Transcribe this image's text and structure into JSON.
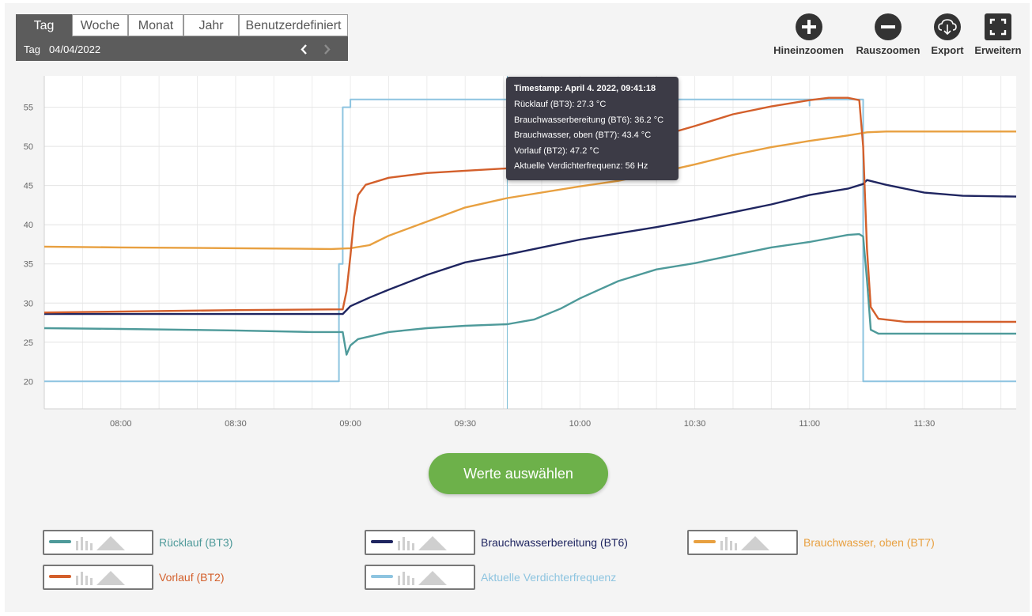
{
  "range": {
    "tabs": [
      "Tag",
      "Woche",
      "Monat",
      "Jahr",
      "Benutzerdefiniert"
    ],
    "active_tab": "Tag",
    "period_label": "Tag",
    "date": "04/04/2022",
    "prev_icon": "chevron-left-icon",
    "next_icon": "chevron-right-icon"
  },
  "toolbar": [
    {
      "label": "Hineinzoomen",
      "icon": "plus-circle-icon"
    },
    {
      "label": "Rauszoomen",
      "icon": "minus-circle-icon"
    },
    {
      "label": "Export",
      "icon": "cloud-download-icon"
    },
    {
      "label": "Erweitern",
      "icon": "expand-icon"
    }
  ],
  "tooltip": {
    "title": "Timestamp: April 4. 2022, 09:41:18",
    "lines": [
      "Rücklauf (BT3): 27.3 °C",
      "Brauchwasserbereitung (BT6): 36.2 °C",
      "Brauchwasser, oben (BT7): 43.4 °C",
      "Vorlauf (BT2): 47.2 °C",
      "Aktuelle Verdichterfrequenz: 56 Hz"
    ]
  },
  "select_button": "Werte auswählen",
  "chart_data": {
    "type": "line",
    "x_unit": "time (HH:MM, 04/04/2022)",
    "x_range": [
      "07:40",
      "11:54"
    ],
    "xticks": [
      "08:00",
      "08:30",
      "09:00",
      "09:30",
      "10:00",
      "10:30",
      "11:00",
      "11:30"
    ],
    "ylim": [
      16.5,
      59
    ],
    "yticks": [
      20,
      25,
      30,
      35,
      40,
      45,
      50,
      55
    ],
    "grid": true,
    "crosshair_x": "09:41",
    "series": [
      {
        "name": "Rücklauf (BT3)",
        "color": "#4e9a9a",
        "points": [
          [
            "07:40",
            26.8
          ],
          [
            "08:00",
            26.7
          ],
          [
            "08:30",
            26.5
          ],
          [
            "08:50",
            26.3
          ],
          [
            "08:58",
            26.3
          ],
          [
            "08:59",
            23.4
          ],
          [
            "09:00",
            24.6
          ],
          [
            "09:02",
            25.4
          ],
          [
            "09:10",
            26.3
          ],
          [
            "09:20",
            26.8
          ],
          [
            "09:30",
            27.1
          ],
          [
            "09:41",
            27.3
          ],
          [
            "09:48",
            27.9
          ],
          [
            "09:55",
            29.3
          ],
          [
            "10:00",
            30.6
          ],
          [
            "10:10",
            32.8
          ],
          [
            "10:20",
            34.3
          ],
          [
            "10:30",
            35.1
          ],
          [
            "10:40",
            36.1
          ],
          [
            "10:50",
            37.1
          ],
          [
            "11:00",
            37.8
          ],
          [
            "11:10",
            38.7
          ],
          [
            "11:13",
            38.8
          ],
          [
            "11:14",
            38.5
          ],
          [
            "11:15",
            33
          ],
          [
            "11:16",
            26.6
          ],
          [
            "11:18",
            26.1
          ],
          [
            "11:30",
            26.1
          ],
          [
            "11:54",
            26.1
          ]
        ]
      },
      {
        "name": "Brauchwasserbereitung (BT6)",
        "color": "#1f2560",
        "points": [
          [
            "07:40",
            28.6
          ],
          [
            "08:30",
            28.6
          ],
          [
            "08:58",
            28.6
          ],
          [
            "09:00",
            29.6
          ],
          [
            "09:05",
            30.7
          ],
          [
            "09:10",
            31.7
          ],
          [
            "09:20",
            33.6
          ],
          [
            "09:30",
            35.2
          ],
          [
            "09:41",
            36.2
          ],
          [
            "09:50",
            37.1
          ],
          [
            "10:00",
            38.1
          ],
          [
            "10:10",
            38.9
          ],
          [
            "10:20",
            39.7
          ],
          [
            "10:30",
            40.6
          ],
          [
            "10:40",
            41.6
          ],
          [
            "10:50",
            42.6
          ],
          [
            "11:00",
            43.8
          ],
          [
            "11:10",
            44.6
          ],
          [
            "11:14",
            45.2
          ],
          [
            "11:15",
            45.7
          ],
          [
            "11:20",
            45.1
          ],
          [
            "11:30",
            44.1
          ],
          [
            "11:40",
            43.7
          ],
          [
            "11:54",
            43.6
          ]
        ]
      },
      {
        "name": "Brauchwasser, oben (BT7)",
        "color": "#e8a040",
        "points": [
          [
            "07:40",
            37.2
          ],
          [
            "08:00",
            37.1
          ],
          [
            "08:30",
            37
          ],
          [
            "08:55",
            36.9
          ],
          [
            "09:00",
            37
          ],
          [
            "09:05",
            37.4
          ],
          [
            "09:10",
            38.6
          ],
          [
            "09:20",
            40.4
          ],
          [
            "09:30",
            42.2
          ],
          [
            "09:41",
            43.4
          ],
          [
            "10:00",
            44.9
          ],
          [
            "10:10",
            45.6
          ],
          [
            "10:20",
            46.6
          ],
          [
            "10:30",
            47.7
          ],
          [
            "10:40",
            48.9
          ],
          [
            "10:50",
            49.9
          ],
          [
            "11:00",
            50.7
          ],
          [
            "11:10",
            51.4
          ],
          [
            "11:15",
            51.8
          ],
          [
            "11:20",
            51.9
          ],
          [
            "11:54",
            51.9
          ]
        ]
      },
      {
        "name": "Vorlauf (BT2)",
        "color": "#d35f2b",
        "points": [
          [
            "07:40",
            28.8
          ],
          [
            "08:30",
            29.1
          ],
          [
            "08:58",
            29.2
          ],
          [
            "08:59",
            31.5
          ],
          [
            "09:00",
            36
          ],
          [
            "09:01",
            41
          ],
          [
            "09:02",
            43.8
          ],
          [
            "09:04",
            45.1
          ],
          [
            "09:10",
            46
          ],
          [
            "09:20",
            46.6
          ],
          [
            "09:30",
            46.9
          ],
          [
            "09:41",
            47.2
          ],
          [
            "10:00",
            48.1
          ],
          [
            "10:10",
            49.3
          ],
          [
            "10:20",
            51.2
          ],
          [
            "10:30",
            52.6
          ],
          [
            "10:40",
            54.1
          ],
          [
            "10:50",
            55.1
          ],
          [
            "11:00",
            55.9
          ],
          [
            "11:05",
            56.2
          ],
          [
            "11:10",
            56.2
          ],
          [
            "11:13",
            55.9
          ],
          [
            "11:14",
            50
          ],
          [
            "11:15",
            37
          ],
          [
            "11:16",
            29.5
          ],
          [
            "11:18",
            28
          ],
          [
            "11:25",
            27.6
          ],
          [
            "11:54",
            27.6
          ]
        ]
      },
      {
        "name": "Aktuelle Verdichterfrequenz",
        "color": "#8dc4e0",
        "points": [
          [
            "07:40",
            20
          ],
          [
            "08:57",
            20
          ],
          [
            "08:57",
            35
          ],
          [
            "08:58",
            35
          ],
          [
            "08:58",
            55
          ],
          [
            "09:00",
            55
          ],
          [
            "09:00",
            56
          ],
          [
            "11:00",
            56
          ],
          [
            "11:00",
            55.2
          ],
          [
            "11:00",
            56
          ],
          [
            "11:14",
            56
          ],
          [
            "11:14",
            20
          ],
          [
            "11:54",
            20
          ]
        ]
      }
    ]
  }
}
